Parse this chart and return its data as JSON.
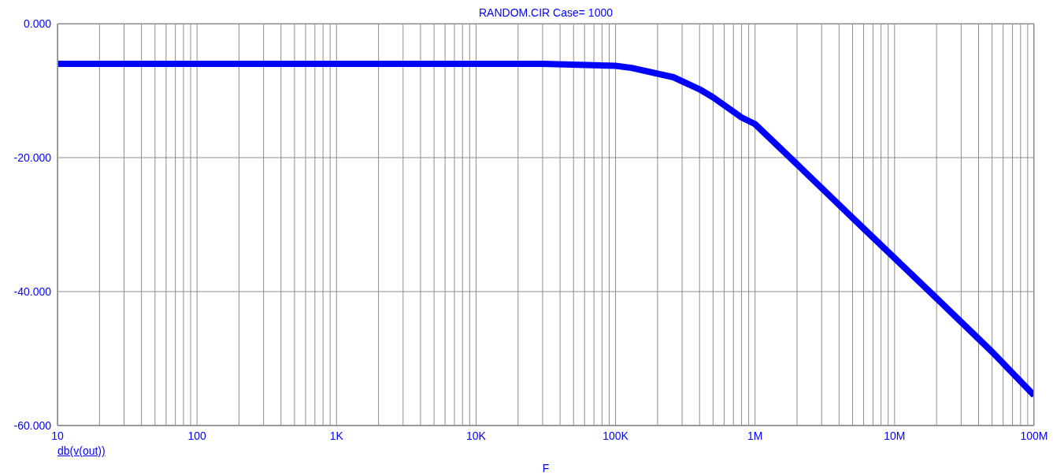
{
  "chart_data": {
    "type": "line",
    "title": "RANDOM.CIR Case= 1000",
    "xlabel": "F",
    "log": "x",
    "grid": true,
    "legend": "bottom left",
    "marker": "none",
    "line_style": "solid",
    "xlim": [
      10,
      100000000
    ],
    "ylim": [
      -60,
      0
    ],
    "yticks": [
      {
        "value": -60,
        "label": "-60.000"
      },
      {
        "value": -40,
        "label": "-40.000"
      },
      {
        "value": -20,
        "label": "-20.000"
      },
      {
        "value": 0,
        "label": "0.000"
      }
    ],
    "xticks": [
      {
        "value": 10,
        "label": "10"
      },
      {
        "value": 20,
        "label": null
      },
      {
        "value": 30,
        "label": null
      },
      {
        "value": 40,
        "label": null
      },
      {
        "value": 50,
        "label": null
      },
      {
        "value": 60,
        "label": null
      },
      {
        "value": 70,
        "label": null
      },
      {
        "value": 80,
        "label": null
      },
      {
        "value": 90,
        "label": null
      },
      {
        "value": 100,
        "label": "100"
      },
      {
        "value": 200,
        "label": null
      },
      {
        "value": 300,
        "label": null
      },
      {
        "value": 400,
        "label": null
      },
      {
        "value": 500,
        "label": null
      },
      {
        "value": 600,
        "label": null
      },
      {
        "value": 700,
        "label": null
      },
      {
        "value": 800,
        "label": null
      },
      {
        "value": 900,
        "label": null
      },
      {
        "value": 1000,
        "label": "1K"
      },
      {
        "value": 2000,
        "label": null
      },
      {
        "value": 3000,
        "label": null
      },
      {
        "value": 4000,
        "label": null
      },
      {
        "value": 5000,
        "label": null
      },
      {
        "value": 6000,
        "label": null
      },
      {
        "value": 7000,
        "label": null
      },
      {
        "value": 8000,
        "label": null
      },
      {
        "value": 9000,
        "label": null
      },
      {
        "value": 10000,
        "label": "10K"
      },
      {
        "value": 20000,
        "label": null
      },
      {
        "value": 30000,
        "label": null
      },
      {
        "value": 40000,
        "label": null
      },
      {
        "value": 50000,
        "label": null
      },
      {
        "value": 60000,
        "label": null
      },
      {
        "value": 70000,
        "label": null
      },
      {
        "value": 80000,
        "label": null
      },
      {
        "value": 90000,
        "label": null
      },
      {
        "value": 100000,
        "label": "100K"
      },
      {
        "value": 200000,
        "label": null
      },
      {
        "value": 300000,
        "label": null
      },
      {
        "value": 400000,
        "label": null
      },
      {
        "value": 500000,
        "label": null
      },
      {
        "value": 600000,
        "label": null
      },
      {
        "value": 700000,
        "label": null
      },
      {
        "value": 800000,
        "label": null
      },
      {
        "value": 900000,
        "label": null
      },
      {
        "value": 1000000,
        "label": "1M"
      },
      {
        "value": 2000000,
        "label": null
      },
      {
        "value": 3000000,
        "label": null
      },
      {
        "value": 4000000,
        "label": null
      },
      {
        "value": 5000000,
        "label": null
      },
      {
        "value": 6000000,
        "label": null
      },
      {
        "value": 7000000,
        "label": null
      },
      {
        "value": 8000000,
        "label": null
      },
      {
        "value": 9000000,
        "label": null
      },
      {
        "value": 10000000,
        "label": "10M"
      },
      {
        "value": 20000000,
        "label": null
      },
      {
        "value": 30000000,
        "label": null
      },
      {
        "value": 40000000,
        "label": null
      },
      {
        "value": 50000000,
        "label": null
      },
      {
        "value": 60000000,
        "label": null
      },
      {
        "value": 70000000,
        "label": null
      },
      {
        "value": 80000000,
        "label": null
      },
      {
        "value": 90000000,
        "label": null
      },
      {
        "value": 100000000,
        "label": "100M"
      }
    ],
    "x": [
      10,
      100,
      1000,
      10000,
      30000,
      100000,
      130000,
      260000,
      400000,
      500000,
      800000,
      1000000,
      2000000,
      5000000,
      10000000,
      20000000,
      50000000,
      100000000
    ],
    "series": [
      {
        "name": "db(v(out))",
        "color": "#0000ff",
        "values": [
          -6,
          -6,
          -6,
          -6,
          -6,
          -6.3,
          -6.6,
          -8,
          -9.8,
          -11,
          -14,
          -15,
          -21,
          -29,
          -35,
          -41,
          -49,
          -55.5
        ]
      }
    ]
  }
}
